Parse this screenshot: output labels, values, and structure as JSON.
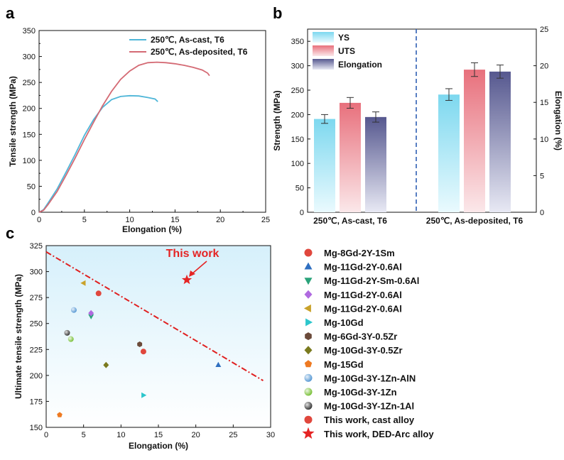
{
  "chart_data": [
    {
      "panel": "a",
      "type": "line",
      "xlabel": "Elongation (%)",
      "ylabel": "Tensile strength (MPa)",
      "xlim": [
        0,
        25
      ],
      "ylim": [
        0,
        350
      ],
      "xticks": [
        "0",
        "5",
        "10",
        "15",
        "20",
        "25"
      ],
      "yticks": [
        "0",
        "50",
        "100",
        "150",
        "200",
        "250",
        "300",
        "350"
      ],
      "legend_position": "top-right",
      "series": [
        {
          "name": "250℃, As-cast, T6",
          "color": "#4fb6d8",
          "points": [
            [
              0,
              0
            ],
            [
              0.5,
              5
            ],
            [
              1,
              18
            ],
            [
              2,
              45
            ],
            [
              3,
              78
            ],
            [
              4,
              112
            ],
            [
              5,
              148
            ],
            [
              6,
              178
            ],
            [
              7,
              202
            ],
            [
              8,
              217
            ],
            [
              9,
              223
            ],
            [
              10,
              224.5
            ],
            [
              11,
              224
            ],
            [
              12,
              221
            ],
            [
              12.8,
              218
            ],
            [
              13.1,
              213
            ]
          ]
        },
        {
          "name": "250℃, As-deposited, T6",
          "color": "#d46a74",
          "points": [
            [
              0,
              0
            ],
            [
              0.5,
              4
            ],
            [
              1,
              15
            ],
            [
              2,
              40
            ],
            [
              3,
              72
            ],
            [
              4,
              105
            ],
            [
              5,
              140
            ],
            [
              6,
              173
            ],
            [
              7,
              205
            ],
            [
              8,
              233
            ],
            [
              9,
              256
            ],
            [
              10,
              272
            ],
            [
              11,
              283
            ],
            [
              12,
              288
            ],
            [
              13,
              289
            ],
            [
              14,
              288
            ],
            [
              15,
              286
            ],
            [
              16,
              283
            ],
            [
              17,
              279
            ],
            [
              18,
              274
            ],
            [
              18.6,
              268
            ],
            [
              18.8,
              263
            ]
          ]
        }
      ]
    },
    {
      "panel": "b",
      "type": "bar",
      "categories": [
        "250℃, As-cast, T6",
        "250℃, As-deposited, T6"
      ],
      "ylabel": "Strength (MPa)",
      "y2label": "Elongation (%)",
      "ylim": [
        0,
        375
      ],
      "y2lim": [
        0,
        25
      ],
      "yticks": [
        "0",
        "50",
        "100",
        "150",
        "200",
        "250",
        "300",
        "350"
      ],
      "y2ticks": [
        "0",
        "5",
        "10",
        "15",
        "20",
        "25"
      ],
      "legend_position": "top-left",
      "series": [
        {
          "name": "YS",
          "axis": "left",
          "color": "#7dd8ef",
          "values": [
            191,
            241
          ],
          "errors": [
            9,
            12
          ]
        },
        {
          "name": "UTS",
          "axis": "left",
          "color": "#e8707c",
          "values": [
            224,
            292
          ],
          "errors": [
            11,
            14
          ]
        },
        {
          "name": "Elongation",
          "axis": "right",
          "color": "#56588f",
          "values": [
            13.0,
            19.2
          ],
          "errors": [
            0.7,
            0.9
          ]
        }
      ]
    },
    {
      "panel": "c",
      "type": "scatter",
      "xlabel": "Elongation (%)",
      "ylabel": "Ultimate tensile strength (MPa)",
      "xlim": [
        0,
        30
      ],
      "ylim": [
        150,
        325
      ],
      "xticks": [
        "0",
        "5",
        "10",
        "15",
        "20",
        "25",
        "30"
      ],
      "yticks": [
        "150",
        "175",
        "200",
        "225",
        "250",
        "275",
        "300",
        "325"
      ],
      "annotation": "This work",
      "trend_line": [
        [
          0,
          319
        ],
        [
          29,
          195
        ]
      ],
      "series": [
        {
          "name": "Mg-8Gd-2Y-1Sm",
          "marker": "circle",
          "color": "#e0473d",
          "points": [
            [
              7,
              279
            ]
          ]
        },
        {
          "name": "Mg-11Gd-2Y-0.6Al",
          "marker": "triangle-up",
          "color": "#2f6fc0",
          "points": [
            [
              23,
              210
            ]
          ]
        },
        {
          "name": "Mg-11Gd-2Y-Sm-0.6Al",
          "marker": "triangle-down",
          "color": "#2aa37a",
          "points": [
            [
              6,
              257
            ]
          ]
        },
        {
          "name": "Mg-11Gd-2Y-0.6Al",
          "marker": "diamond",
          "color": "#b06ae0",
          "points": [
            [
              6,
              260
            ]
          ]
        },
        {
          "name": "Mg-11Gd-2Y-0.6Al",
          "marker": "triangle-left",
          "color": "#c9a22a",
          "points": [
            [
              5,
              289
            ]
          ]
        },
        {
          "name": "Mg-10Gd",
          "marker": "triangle-right",
          "color": "#2cc6cc",
          "points": [
            [
              13,
              181
            ]
          ]
        },
        {
          "name": "Mg-6Gd-3Y-0.5Zr",
          "marker": "hexagon",
          "color": "#6b4a3a",
          "points": [
            [
              12.5,
              230
            ]
          ]
        },
        {
          "name": "Mg-10Gd-3Y-0.5Zr",
          "marker": "diamond",
          "color": "#7a7a1e",
          "points": [
            [
              8,
              210
            ]
          ]
        },
        {
          "name": "Mg-15Gd",
          "marker": "pentagon",
          "color": "#ee7a22",
          "points": [
            [
              1.8,
              162
            ]
          ]
        },
        {
          "name": "Mg-10Gd-3Y-1Zn-AlN",
          "marker": "sphere",
          "color": "#5b9bd5",
          "points": [
            [
              3.7,
              263
            ]
          ]
        },
        {
          "name": "Mg-10Gd-3Y-1Zn",
          "marker": "sphere",
          "color": "#7cc23c",
          "points": [
            [
              3.3,
              235
            ]
          ]
        },
        {
          "name": "Mg-10Gd-3Y-1Zn-1Al",
          "marker": "sphere",
          "color": "#3a3a3a",
          "points": [
            [
              2.8,
              241
            ]
          ]
        },
        {
          "name": "This work, cast alloy",
          "marker": "circle",
          "color": "#e0473d",
          "points": [
            [
              13,
              223
            ]
          ]
        },
        {
          "name": "This work, DED-Arc alloy",
          "marker": "star",
          "color": "#e52424",
          "points": [
            [
              18.8,
              292
            ]
          ]
        }
      ]
    }
  ]
}
